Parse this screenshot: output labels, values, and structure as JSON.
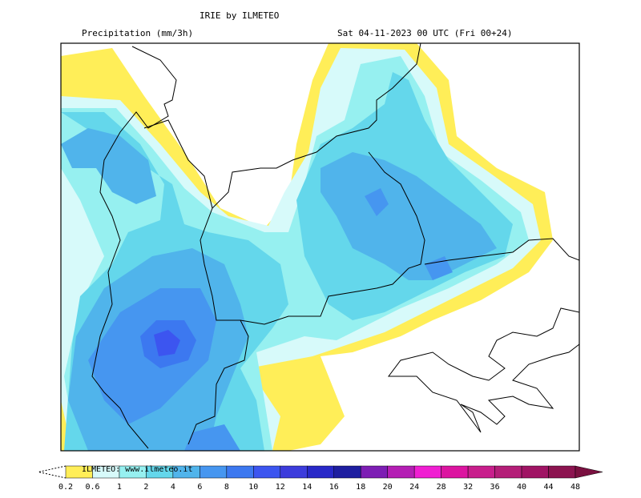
{
  "header": {
    "title": "IRIE by ILMETEO",
    "variable": "Precipitation (mm/3h)",
    "time": "Sat 04-11-2023 00 UTC (Fri 00+24)"
  },
  "credit": "ILMETEO: www.ilmeteo.it",
  "legend": {
    "levels": [
      0.2,
      0.6,
      1,
      2,
      4,
      6,
      8,
      10,
      12,
      14,
      16,
      18,
      20,
      24,
      28,
      32,
      36,
      40,
      44,
      48
    ],
    "colors": [
      "#ffee58",
      "#d7fafa",
      "#96f0f0",
      "#64d7eb",
      "#50b4eb",
      "#4696f0",
      "#3c78f0",
      "#3c55f0",
      "#3c3cdc",
      "#2828c8",
      "#1e1ea0",
      "#7d1eb4",
      "#b41eb4",
      "#f01ed2",
      "#dc14a0",
      "#c81e8c",
      "#b41e78",
      "#a01464",
      "#8c1450",
      "#7a1040"
    ]
  }
}
